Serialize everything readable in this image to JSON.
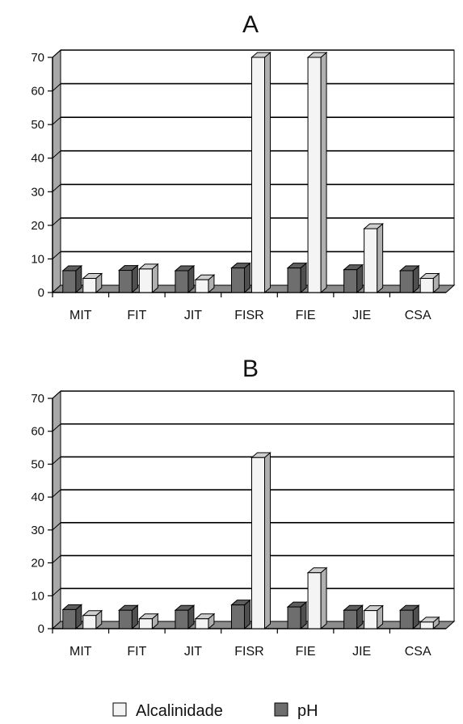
{
  "colors": {
    "alcalinidade": "#f4f4f4",
    "ph": "#6e6e6e",
    "wall": "#a8a8a8",
    "floor": "#8c8c8c",
    "grid": "#000000"
  },
  "legend": [
    {
      "label": "Alcalinidade",
      "color": "#f4f4f4"
    },
    {
      "label": "pH",
      "color": "#6e6e6e"
    }
  ],
  "chart_data": [
    {
      "type": "bar",
      "title": "A",
      "categories": [
        "MIT",
        "FIT",
        "JIT",
        "FISR",
        "FIE",
        "JIE",
        "CSA"
      ],
      "ylim": [
        0,
        70
      ],
      "yticks": [
        0,
        10,
        20,
        30,
        40,
        50,
        60,
        70
      ],
      "grid": true,
      "series": [
        {
          "name": "pH",
          "values": [
            6.5,
            6.6,
            6.5,
            7.3,
            7.3,
            6.8,
            6.5
          ]
        },
        {
          "name": "Alcalinidade",
          "values": [
            4.2,
            7.0,
            3.8,
            70,
            70,
            19,
            4.2
          ]
        }
      ]
    },
    {
      "type": "bar",
      "title": "B",
      "categories": [
        "MIT",
        "FIT",
        "JIT",
        "FISR",
        "FIE",
        "JIE",
        "CSA"
      ],
      "ylim": [
        0,
        70
      ],
      "yticks": [
        0,
        10,
        20,
        30,
        40,
        50,
        60,
        70
      ],
      "grid": true,
      "series": [
        {
          "name": "pH",
          "values": [
            5.8,
            5.6,
            5.6,
            7.2,
            6.6,
            5.6,
            5.6
          ]
        },
        {
          "name": "Alcalinidade",
          "values": [
            4.0,
            3.0,
            3.0,
            52,
            17,
            5.5,
            2.0
          ]
        }
      ]
    }
  ]
}
